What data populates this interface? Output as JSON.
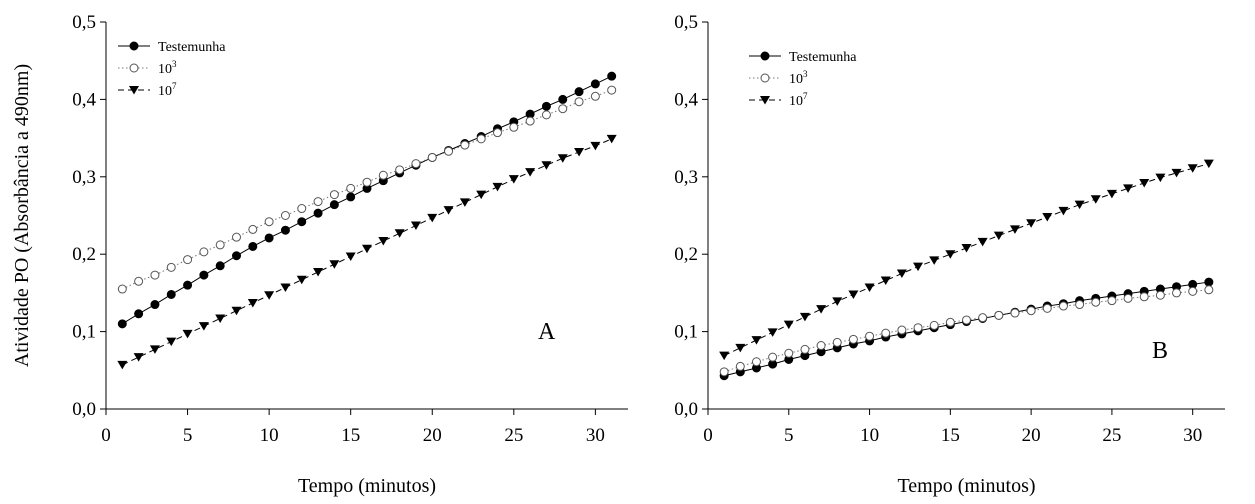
{
  "chart_data": [
    {
      "type": "line",
      "panel_label": "A",
      "xlabel": "Tempo (minutos)",
      "ylabel": "Atividade PO (Absorbância a 490nm)",
      "xlim": [
        0,
        32
      ],
      "ylim": [
        0.0,
        0.5
      ],
      "x_ticks": [
        "0",
        "5",
        "10",
        "15",
        "20",
        "25",
        "30"
      ],
      "y_ticks": [
        "0,0",
        "0,1",
        "0,2",
        "0,3",
        "0,4",
        "0,5"
      ],
      "grid": false,
      "legend_position": "top-left",
      "x": [
        1,
        2,
        3,
        4,
        5,
        6,
        7,
        8,
        9,
        10,
        11,
        12,
        13,
        14,
        15,
        16,
        17,
        18,
        19,
        20,
        21,
        22,
        23,
        24,
        25,
        26,
        27,
        28,
        29,
        30,
        31
      ],
      "series": [
        {
          "name": "Testemunha",
          "marker": "filled-circle",
          "line_style": "solid",
          "values": [
            0.11,
            0.123,
            0.135,
            0.148,
            0.16,
            0.173,
            0.185,
            0.198,
            0.21,
            0.221,
            0.231,
            0.242,
            0.253,
            0.264,
            0.274,
            0.285,
            0.295,
            0.305,
            0.315,
            0.325,
            0.334,
            0.343,
            0.352,
            0.362,
            0.371,
            0.381,
            0.391,
            0.4,
            0.41,
            0.42,
            0.43
          ]
        },
        {
          "name": "10",
          "name_superscript": "3",
          "marker": "open-circle",
          "line_style": "dotted",
          "values": [
            0.155,
            0.165,
            0.173,
            0.183,
            0.193,
            0.203,
            0.212,
            0.222,
            0.232,
            0.242,
            0.25,
            0.259,
            0.268,
            0.277,
            0.285,
            0.293,
            0.302,
            0.309,
            0.317,
            0.325,
            0.333,
            0.341,
            0.349,
            0.357,
            0.364,
            0.372,
            0.38,
            0.388,
            0.397,
            0.404,
            0.412
          ]
        },
        {
          "name": "10",
          "name_superscript": "7",
          "marker": "filled-triangle-down",
          "line_style": "dashed",
          "values": [
            0.057,
            0.067,
            0.077,
            0.087,
            0.097,
            0.107,
            0.117,
            0.127,
            0.137,
            0.147,
            0.157,
            0.167,
            0.177,
            0.187,
            0.197,
            0.207,
            0.217,
            0.227,
            0.237,
            0.247,
            0.257,
            0.267,
            0.277,
            0.287,
            0.297,
            0.306,
            0.315,
            0.324,
            0.332,
            0.34,
            0.349
          ]
        }
      ]
    },
    {
      "type": "line",
      "panel_label": "B",
      "xlabel": "Tempo (minutos)",
      "ylabel": "",
      "xlim": [
        0,
        32
      ],
      "ylim": [
        0.0,
        0.5
      ],
      "x_ticks": [
        "0",
        "5",
        "10",
        "15",
        "20",
        "25",
        "30"
      ],
      "y_ticks": [
        "0,0",
        "0,1",
        "0,2",
        "0,3",
        "0,4",
        "0,5"
      ],
      "grid": false,
      "legend_position": "top-left",
      "x": [
        1,
        2,
        3,
        4,
        5,
        6,
        7,
        8,
        9,
        10,
        11,
        12,
        13,
        14,
        15,
        16,
        17,
        18,
        19,
        20,
        21,
        22,
        23,
        24,
        25,
        26,
        27,
        28,
        29,
        30,
        31
      ],
      "series": [
        {
          "name": "Testemunha",
          "marker": "filled-circle",
          "line_style": "solid",
          "values": [
            0.043,
            0.048,
            0.053,
            0.058,
            0.064,
            0.069,
            0.074,
            0.079,
            0.084,
            0.088,
            0.093,
            0.097,
            0.101,
            0.105,
            0.109,
            0.113,
            0.117,
            0.121,
            0.125,
            0.129,
            0.133,
            0.136,
            0.14,
            0.143,
            0.146,
            0.149,
            0.152,
            0.155,
            0.158,
            0.161,
            0.164
          ]
        },
        {
          "name": "10",
          "name_superscript": "3",
          "marker": "open-circle",
          "line_style": "dotted",
          "values": [
            0.048,
            0.055,
            0.061,
            0.067,
            0.072,
            0.077,
            0.082,
            0.086,
            0.09,
            0.094,
            0.098,
            0.102,
            0.105,
            0.108,
            0.112,
            0.115,
            0.118,
            0.121,
            0.124,
            0.127,
            0.13,
            0.133,
            0.135,
            0.138,
            0.14,
            0.143,
            0.145,
            0.147,
            0.15,
            0.152,
            0.154
          ]
        },
        {
          "name": "10",
          "name_superscript": "7",
          "marker": "filled-triangle-down",
          "line_style": "dashed",
          "values": [
            0.069,
            0.079,
            0.089,
            0.099,
            0.109,
            0.119,
            0.129,
            0.139,
            0.148,
            0.157,
            0.166,
            0.175,
            0.184,
            0.192,
            0.2,
            0.208,
            0.216,
            0.224,
            0.232,
            0.24,
            0.248,
            0.256,
            0.264,
            0.271,
            0.278,
            0.285,
            0.292,
            0.299,
            0.305,
            0.311,
            0.317
          ]
        }
      ]
    }
  ]
}
